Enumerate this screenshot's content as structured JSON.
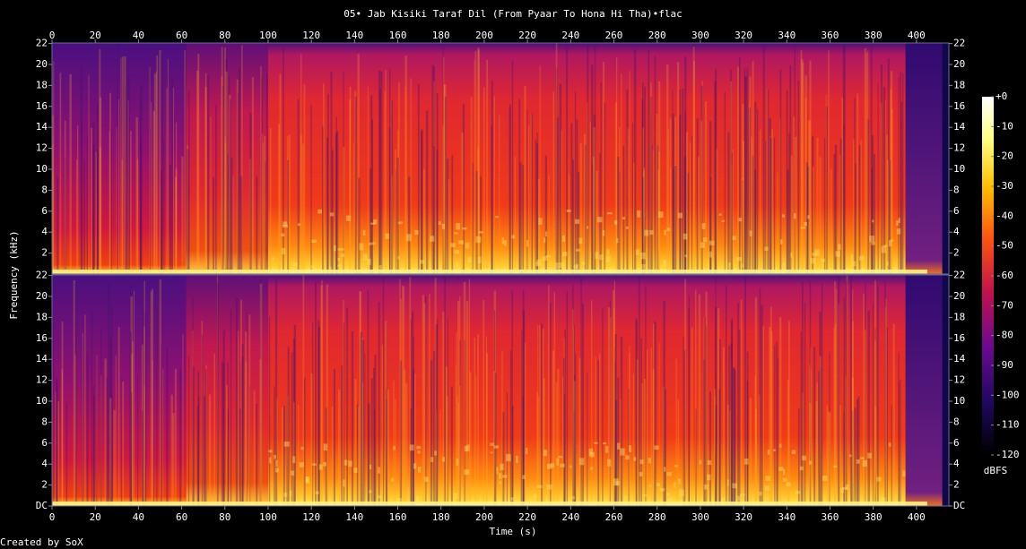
{
  "chart_data": {
    "type": "spectrogram",
    "title": "05• Jab Kisiki Taraf Dil (From Pyaar To Hona Hi Tha)•flac",
    "x_label": "Time (s)",
    "y_label": "Frequency (kHz)",
    "xlim": [
      0,
      415
    ],
    "xticks": [
      0,
      20,
      40,
      60,
      80,
      100,
      120,
      140,
      160,
      180,
      200,
      220,
      240,
      260,
      280,
      300,
      320,
      340,
      360,
      380,
      400
    ],
    "panels": [
      {
        "ylim": [
          0,
          22.05
        ],
        "yticks": [
          2,
          4,
          6,
          8,
          10,
          12,
          14,
          16,
          18,
          20,
          22
        ]
      },
      {
        "ylim": [
          0,
          22.05
        ],
        "yticks": [
          {
            "value": 0,
            "label": "DC"
          },
          2,
          4,
          6,
          8,
          10,
          12,
          14,
          16,
          18,
          20,
          22
        ]
      }
    ],
    "colorbar": {
      "label": "dBFS",
      "clim": [
        -120,
        0
      ],
      "ticks": [
        {
          "value": 0,
          "label": "+0"
        },
        -10,
        -20,
        -30,
        -40,
        -50,
        -60,
        -70,
        -80,
        -90,
        -100,
        -110,
        -120
      ]
    },
    "footer": "Created by SoX"
  }
}
